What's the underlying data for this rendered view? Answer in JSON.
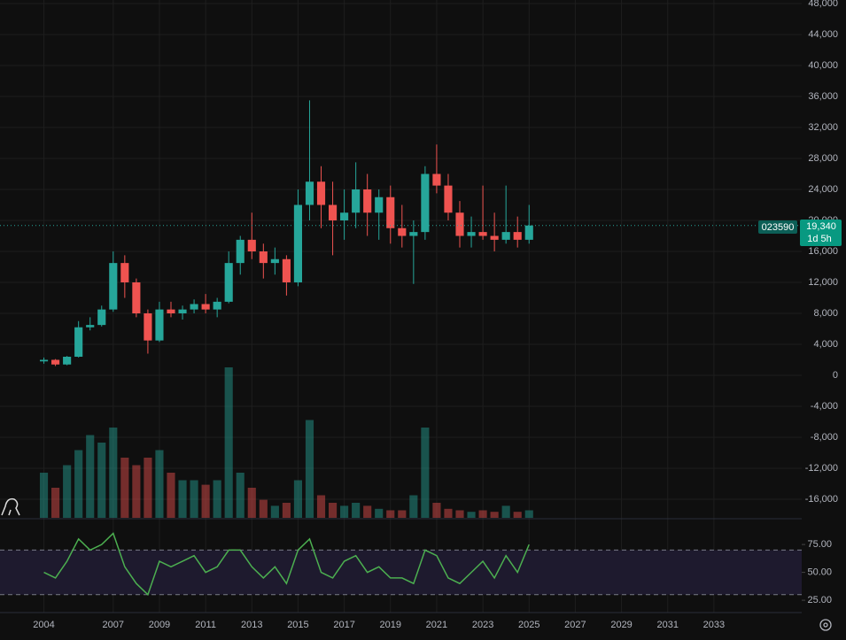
{
  "chart_data": {
    "type": "candlestick",
    "symbol": "023590",
    "last_price": {
      "value": 19340,
      "label": "19,340"
    },
    "countdown": "1d 5h",
    "up_color": "#26a69a",
    "down_color": "#ef5350",
    "grid": true,
    "x": [
      2004.0,
      2004.5,
      2005.0,
      2005.5,
      2006.0,
      2006.5,
      2007.0,
      2007.5,
      2008.0,
      2008.5,
      2009.0,
      2009.5,
      2010.0,
      2010.5,
      2011.0,
      2011.5,
      2012.0,
      2012.5,
      2013.0,
      2013.5,
      2014.0,
      2014.5,
      2015.0,
      2015.5,
      2016.0,
      2016.5,
      2017.0,
      2017.5,
      2018.0,
      2018.5,
      2019.0,
      2019.5,
      2020.0,
      2020.5,
      2021.0,
      2021.5,
      2022.0,
      2022.5,
      2023.0,
      2023.5,
      2024.0,
      2024.5,
      2025.0
    ],
    "open": [
      1800,
      2000,
      1400,
      2400,
      6200,
      6500,
      8500,
      14500,
      12000,
      8000,
      4500,
      8500,
      8000,
      8500,
      9200,
      8500,
      9500,
      14500,
      17500,
      16000,
      14500,
      15000,
      12000,
      22000,
      25000,
      22000,
      20000,
      21000,
      24000,
      21000,
      23000,
      19000,
      18000,
      18500,
      26000,
      24500,
      21000,
      18000,
      18500,
      18000,
      17500,
      18500,
      17500
    ],
    "high": [
      2300,
      2100,
      2500,
      7000,
      7500,
      9000,
      16000,
      15500,
      12500,
      8500,
      9500,
      9500,
      9000,
      9800,
      10500,
      10000,
      16000,
      18000,
      21000,
      17000,
      16500,
      15500,
      24000,
      35500,
      27000,
      25000,
      24000,
      27500,
      26000,
      24000,
      24500,
      22000,
      20000,
      27000,
      29800,
      26000,
      22500,
      20500,
      24500,
      21000,
      24500,
      20500,
      22000
    ],
    "low": [
      1500,
      1200,
      1300,
      2300,
      5800,
      6300,
      8200,
      10000,
      7500,
      2800,
      4300,
      7500,
      7200,
      8000,
      8000,
      7500,
      9300,
      13000,
      15000,
      12500,
      13000,
      10300,
      11500,
      20000,
      19000,
      15500,
      17500,
      19000,
      18000,
      17500,
      17000,
      16500,
      11800,
      17500,
      23500,
      20000,
      16500,
      16500,
      17500,
      16000,
      17000,
      16500,
      17000
    ],
    "close": [
      2000,
      1400,
      2400,
      6200,
      6500,
      8500,
      14500,
      12000,
      8000,
      4500,
      8500,
      8000,
      8500,
      9200,
      8500,
      9500,
      14500,
      17500,
      16000,
      14500,
      15000,
      12000,
      22000,
      25000,
      22000,
      20000,
      21000,
      24000,
      21000,
      23000,
      19000,
      18000,
      18500,
      26000,
      24500,
      21000,
      18000,
      18500,
      18000,
      17500,
      18500,
      17500,
      19340
    ],
    "volume": [
      30,
      20,
      35,
      45,
      55,
      50,
      60,
      40,
      35,
      40,
      45,
      30,
      25,
      25,
      22,
      25,
      100,
      30,
      20,
      12,
      8,
      10,
      25,
      65,
      15,
      10,
      8,
      10,
      8,
      6,
      5,
      5,
      15,
      60,
      10,
      6,
      5,
      4,
      5,
      4,
      8,
      4,
      5
    ],
    "xlim": [
      2002.1,
      2036.8
    ],
    "xticks": [
      2004,
      2007,
      2009,
      2011,
      2013,
      2015,
      2017,
      2019,
      2021,
      2023,
      2025,
      2027,
      2029,
      2031,
      2033
    ],
    "ylim": [
      -18000,
      48000
    ],
    "yticks": [
      {
        "value": 48000,
        "label": "48,000"
      },
      {
        "value": 44000,
        "label": "44,000"
      },
      {
        "value": 40000,
        "label": "40,000"
      },
      {
        "value": 36000,
        "label": "36,000"
      },
      {
        "value": 32000,
        "label": "32,000"
      },
      {
        "value": 28000,
        "label": "28,000"
      },
      {
        "value": 24000,
        "label": "24,000"
      },
      {
        "value": 20000,
        "label": "20,000"
      },
      {
        "value": 16000,
        "label": "16,000"
      },
      {
        "value": 12000,
        "label": "12,000"
      },
      {
        "value": 8000,
        "label": "8,000"
      },
      {
        "value": 4000,
        "label": "4,000"
      },
      0,
      {
        "value": -4000,
        "label": "-4,000"
      },
      {
        "value": -8000,
        "label": "-8,000"
      },
      {
        "value": -12000,
        "label": "-12,000"
      },
      {
        "value": -16000,
        "label": "-16,000"
      }
    ],
    "rsi": {
      "color": "#4caf50",
      "values": [
        50,
        45,
        60,
        80,
        70,
        75,
        85,
        55,
        40,
        30,
        60,
        55,
        60,
        65,
        50,
        55,
        70,
        70,
        55,
        45,
        55,
        40,
        70,
        80,
        50,
        45,
        60,
        65,
        50,
        55,
        45,
        45,
        40,
        70,
        65,
        45,
        40,
        50,
        60,
        45,
        65,
        50,
        75
      ],
      "ylim": [
        15,
        87
      ],
      "yticks": [
        {
          "value": 75,
          "label": "75.00"
        },
        {
          "value": 50,
          "label": "50.00"
        },
        {
          "value": 25,
          "label": "25.00"
        }
      ],
      "band": [
        30,
        70
      ]
    }
  }
}
